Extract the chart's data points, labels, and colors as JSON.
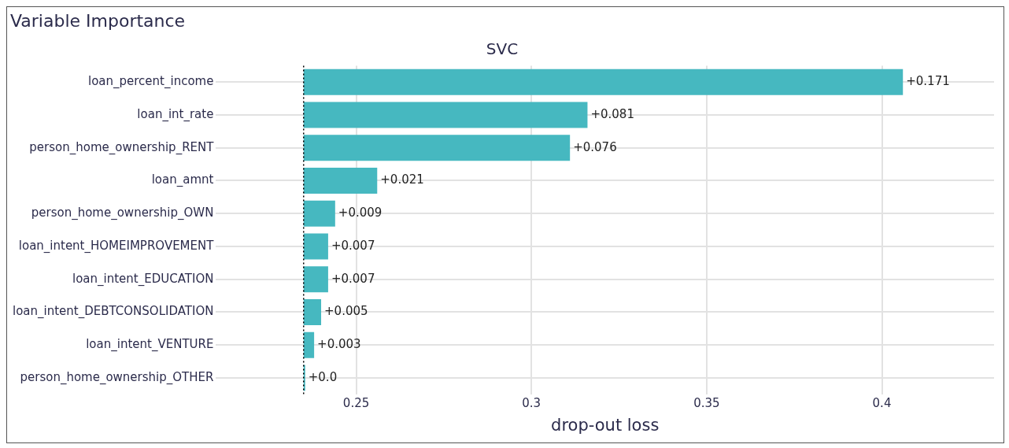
{
  "chart_data": {
    "type": "bar",
    "orientation": "horizontal",
    "title": "Variable Importance",
    "subtitle": "SVC",
    "xlabel": "drop-out loss",
    "categories": [
      "loan_percent_income",
      "loan_int_rate",
      "person_home_ownership_RENT",
      "loan_amnt",
      "person_home_ownership_OWN",
      "loan_intent_HOMEIMPROVEMENT",
      "loan_intent_EDUCATION",
      "loan_intent_DEBTCONSOLIDATION",
      "loan_intent_VENTURE",
      "person_home_ownership_OTHER"
    ],
    "base": [
      0.235,
      0.235,
      0.235,
      0.235,
      0.235,
      0.235,
      0.235,
      0.235,
      0.235,
      0.235
    ],
    "values": [
      0.171,
      0.081,
      0.076,
      0.021,
      0.009,
      0.007,
      0.007,
      0.005,
      0.003,
      0.0
    ],
    "value_labels": [
      "+0.171",
      "+0.081",
      "+0.076",
      "+0.021",
      "+0.009",
      "+0.007",
      "+0.007",
      "+0.005",
      "+0.003",
      "+0.0"
    ],
    "color": "#46b8c0",
    "xlim": [
      0.21,
      0.432
    ],
    "xticks": [
      0.25,
      0.3,
      0.35,
      0.4
    ],
    "ref_lines": [
      {
        "axis": "x",
        "value": 0.235,
        "color": "#000000",
        "line_style": "dotted"
      }
    ],
    "grid": true,
    "legend": false
  }
}
